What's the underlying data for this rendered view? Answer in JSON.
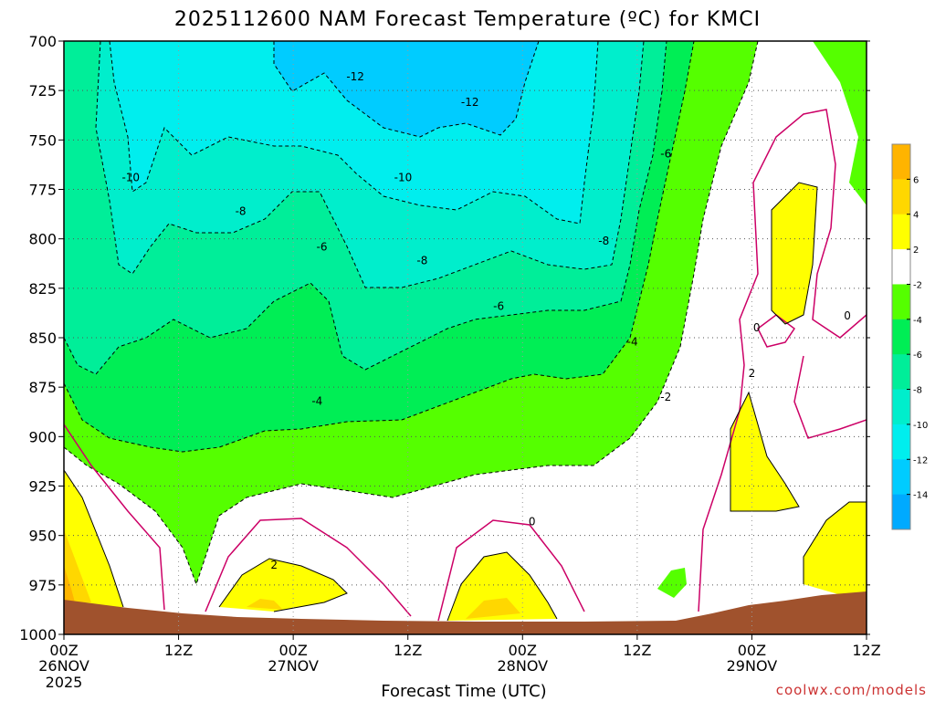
{
  "chart_data": {
    "type": "contour",
    "title": "2025112600 NAM Forecast Temperature (ºC) for KMCI",
    "xlabel": "Forecast Time (UTC)",
    "ylabel": "",
    "credit": "coolwx.com/models",
    "x_ticks": [
      {
        "label": "00Z",
        "date": "26NOV",
        "year": "2025",
        "hour": 0
      },
      {
        "label": "12Z",
        "date": "",
        "year": "",
        "hour": 12
      },
      {
        "label": "00Z",
        "date": "27NOV",
        "year": "",
        "hour": 24
      },
      {
        "label": "12Z",
        "date": "",
        "year": "",
        "hour": 36
      },
      {
        "label": "00Z",
        "date": "28NOV",
        "year": "",
        "hour": 48
      },
      {
        "label": "12Z",
        "date": "",
        "year": "",
        "hour": 60
      },
      {
        "label": "00Z",
        "date": "29NOV",
        "year": "",
        "hour": 72
      },
      {
        "label": "12Z",
        "date": "",
        "year": "",
        "hour": 84
      }
    ],
    "xlim": [
      0,
      84
    ],
    "y_ticks": [
      "700",
      "725",
      "750",
      "775",
      "800",
      "825",
      "850",
      "875",
      "900",
      "925",
      "950",
      "975",
      "1000"
    ],
    "ylim": [
      700,
      1000
    ],
    "y_reversed": true,
    "colorbar": {
      "labels": [
        "6",
        "4",
        "2",
        "-2",
        "-4",
        "-6",
        "-8",
        "-10",
        "-12",
        "-14"
      ],
      "colors": [
        "#ffb400",
        "#ffd700",
        "#ffff00",
        "#ffffff",
        "#55ff00",
        "#00ee55",
        "#00ee99",
        "#00eecc",
        "#00eeee",
        "#00ccff",
        "#00aaff"
      ]
    },
    "contour_labels": [
      {
        "text": "-12",
        "x": 30.5,
        "y": 718
      },
      {
        "text": "-12",
        "x": 42.5,
        "y": 731
      },
      {
        "text": "-10",
        "x": 7,
        "y": 769
      },
      {
        "text": "-10",
        "x": 35.5,
        "y": 769
      },
      {
        "text": "-8",
        "x": 18.5,
        "y": 786
      },
      {
        "text": "-8",
        "x": 37.5,
        "y": 811
      },
      {
        "text": "-8",
        "x": 56.5,
        "y": 801
      },
      {
        "text": "-6",
        "x": 27,
        "y": 804
      },
      {
        "text": "-6",
        "x": 45.5,
        "y": 834
      },
      {
        "text": "-6",
        "x": 63,
        "y": 757
      },
      {
        "text": "-4",
        "x": 26.5,
        "y": 882
      },
      {
        "text": "-4",
        "x": 59.5,
        "y": 852
      },
      {
        "text": "-2",
        "x": 63,
        "y": 880
      },
      {
        "text": "0",
        "x": 49,
        "y": 943
      },
      {
        "text": "0",
        "x": 72.5,
        "y": 845
      },
      {
        "text": "0",
        "x": 82,
        "y": 839
      },
      {
        "text": "2",
        "x": 22,
        "y": 965
      },
      {
        "text": "2",
        "x": 72,
        "y": 868
      }
    ],
    "grid": true
  }
}
